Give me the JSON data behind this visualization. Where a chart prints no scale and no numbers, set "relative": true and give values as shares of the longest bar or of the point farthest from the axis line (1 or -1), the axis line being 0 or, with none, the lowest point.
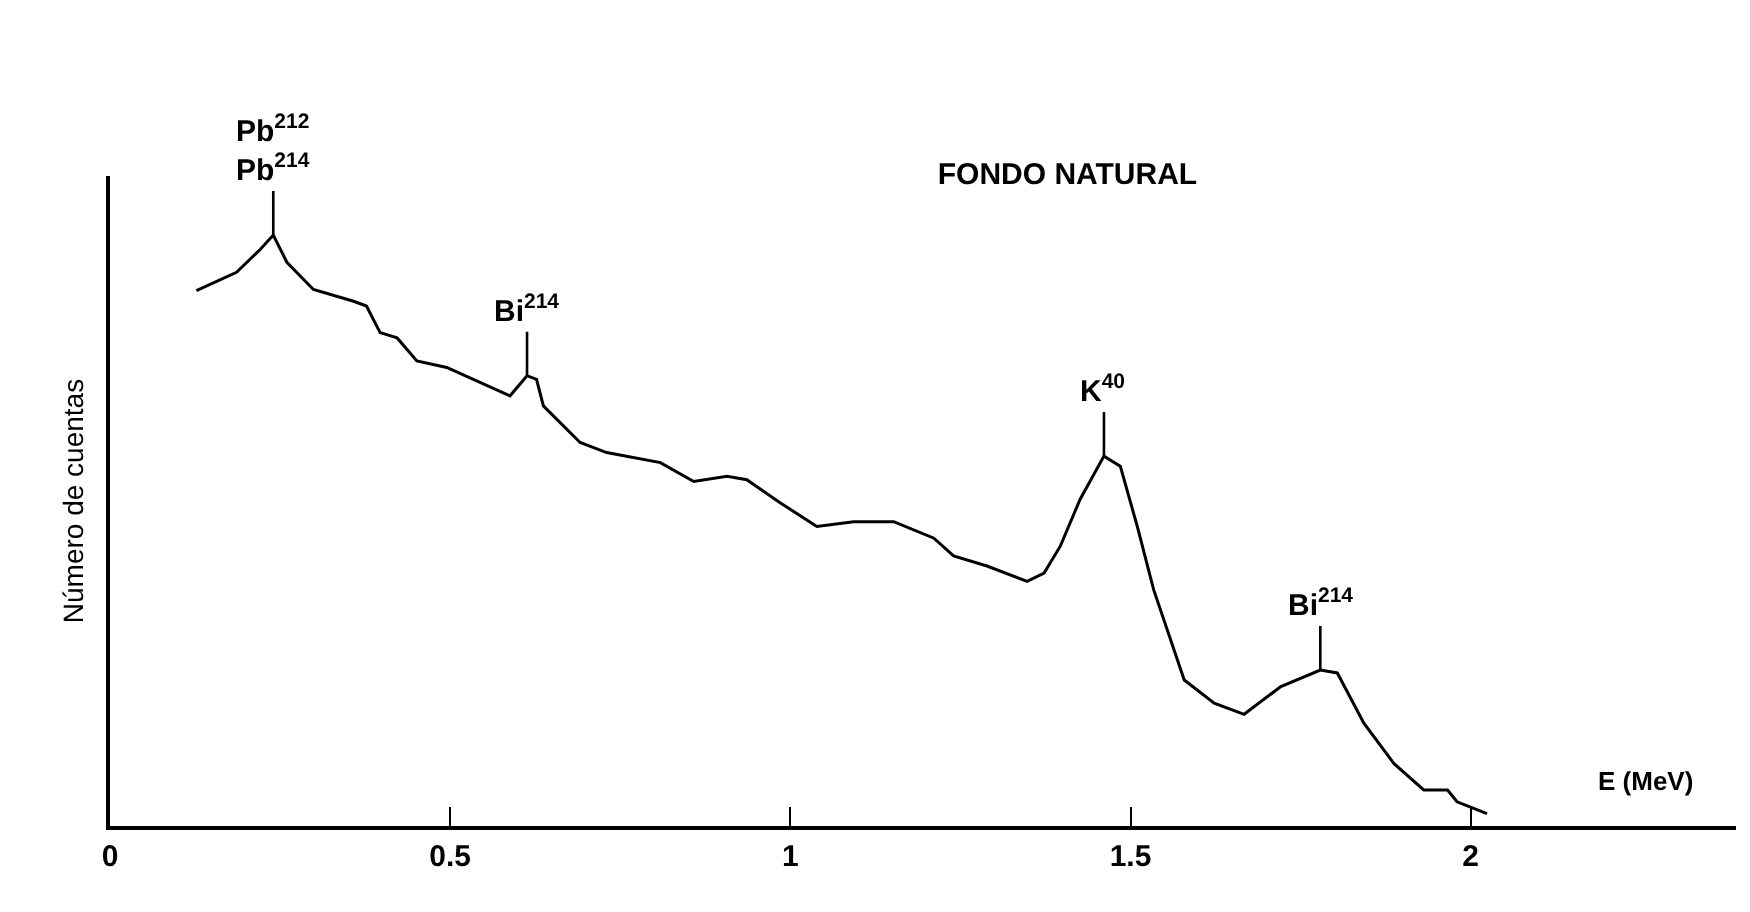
{
  "chart_data": {
    "type": "line",
    "title": "FONDO NATURAL",
    "xlabel": "E (MeV)",
    "ylabel": "Número de cuentas",
    "relative": true,
    "color": "#000000",
    "xlim": [
      0,
      2.39
    ],
    "xticks": [
      0,
      0.5,
      1,
      1.5,
      2
    ],
    "grid": false,
    "legend": false,
    "marker": "none",
    "line_style": "solid",
    "x": [
      0.127,
      0.186,
      0.221,
      0.24,
      0.26,
      0.299,
      0.358,
      0.377,
      0.397,
      0.422,
      0.451,
      0.495,
      0.534,
      0.588,
      0.613,
      0.627,
      0.637,
      0.691,
      0.73,
      0.809,
      0.858,
      0.907,
      0.936,
      0.985,
      1.039,
      1.093,
      1.152,
      1.211,
      1.24,
      1.289,
      1.348,
      1.373,
      1.397,
      1.426,
      1.461,
      1.485,
      1.51,
      1.534,
      1.579,
      1.623,
      1.667,
      1.721,
      1.779,
      1.804,
      1.843,
      1.887,
      1.931,
      1.966,
      1.98,
      2.024
    ],
    "values": [
      0.906,
      0.937,
      0.976,
      1.0,
      0.954,
      0.908,
      0.888,
      0.88,
      0.835,
      0.826,
      0.787,
      0.776,
      0.756,
      0.728,
      0.762,
      0.756,
      0.711,
      0.649,
      0.632,
      0.615,
      0.583,
      0.592,
      0.586,
      0.547,
      0.507,
      0.515,
      0.515,
      0.487,
      0.457,
      0.44,
      0.414,
      0.428,
      0.474,
      0.553,
      0.626,
      0.609,
      0.507,
      0.4,
      0.247,
      0.208,
      0.189,
      0.236,
      0.264,
      0.259,
      0.174,
      0.106,
      0.061,
      0.061,
      0.041,
      0.021
    ],
    "annotations": [
      {
        "text": "Pb$^{212}$\nPb$^{214}$",
        "x": 0.24,
        "y": 1.0
      },
      {
        "text": "Bi$^{214}$",
        "x": 0.613,
        "y": 0.762
      },
      {
        "text": "K$^{40}$",
        "x": 1.461,
        "y": 0.626
      },
      {
        "text": "Bi$^{214}$",
        "x": 1.779,
        "y": 0.264
      }
    ]
  }
}
